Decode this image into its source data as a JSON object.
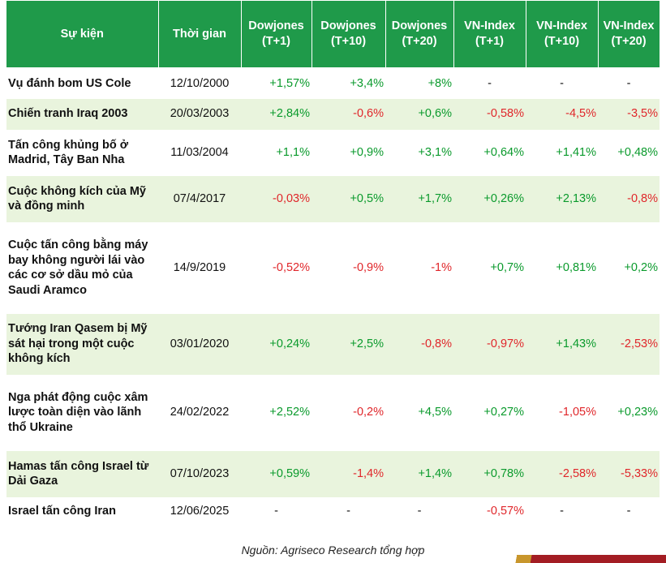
{
  "table": {
    "headers": [
      {
        "line1": "Sự kiện",
        "line2": ""
      },
      {
        "line1": "Thời gian",
        "line2": ""
      },
      {
        "line1": "Dowjones",
        "line2": "(T+1)"
      },
      {
        "line1": "Dowjones",
        "line2": "(T+10)"
      },
      {
        "line1": "Dowjones",
        "line2": "(T+20)"
      },
      {
        "line1": "VN-Index",
        "line2": "(T+1)"
      },
      {
        "line1": "VN-Index",
        "line2": "(T+10)"
      },
      {
        "line1": "VN-Index",
        "line2": "(T+20)"
      }
    ],
    "rows": [
      {
        "event": "Vụ đánh bom US Cole",
        "date": "12/10/2000",
        "values": [
          "+1,57%",
          "+3,4%",
          "+8%",
          "-",
          "-",
          "-"
        ]
      },
      {
        "event": "Chiến tranh Iraq 2003",
        "date": "20/03/2003",
        "values": [
          "+2,84%",
          "-0,6%",
          "+0,6%",
          "-0,58%",
          "-4,5%",
          "-3,5%"
        ]
      },
      {
        "event": "Tấn công khủng bố ở Madrid, Tây Ban Nha",
        "date": "11/03/2004",
        "values": [
          "+1,1%",
          "+0,9%",
          "+3,1%",
          "+0,64%",
          "+1,41%",
          "+0,48%"
        ]
      },
      {
        "event": "Cuộc không kích của Mỹ và đồng minh",
        "date": "07/4/2017",
        "values": [
          "-0,03%",
          "+0,5%",
          "+1,7%",
          "+0,26%",
          "+2,13%",
          "-0,8%"
        ]
      },
      {
        "event": "Cuộc tấn công bằng máy bay không người lái vào các cơ sở dầu mỏ của Saudi Aramco",
        "date": "14/9/2019",
        "values": [
          "-0,52%",
          "-0,9%",
          "-1%",
          "+0,7%",
          "+0,81%",
          "+0,2%"
        ]
      },
      {
        "event": "Tướng Iran Qasem bị Mỹ sát hại trong một cuộc không kích",
        "date": "03/01/2020",
        "values": [
          "+0,24%",
          "+2,5%",
          "-0,8%",
          "-0,97%",
          "+1,43%",
          "-2,53%"
        ]
      },
      {
        "event": "Nga phát động cuộc xâm lược toàn diện vào lãnh thổ Ukraine",
        "date": "24/02/2022",
        "values": [
          "+2,52%",
          "-0,2%",
          "+4,5%",
          "+0,27%",
          "-1,05%",
          "+0,23%"
        ]
      },
      {
        "event": "Hamas tấn công Israel từ Dải Gaza",
        "date": "07/10/2023",
        "values": [
          "+0,59%",
          "-1,4%",
          "+1,4%",
          "+0,78%",
          "-2,58%",
          "-5,33%"
        ]
      },
      {
        "event": "Israel tấn công Iran",
        "date": "12/06/2025",
        "values": [
          "-",
          "-",
          "-",
          "-0,57%",
          "-",
          "-"
        ]
      }
    ]
  },
  "source_note": "Nguồn: Agriseco Research tổng hợp",
  "colors": {
    "header_bg": "#1f9a4a",
    "alt_row_bg": "#e9f4dd",
    "positive": "#0a9a2c",
    "negative": "#e0262a"
  }
}
